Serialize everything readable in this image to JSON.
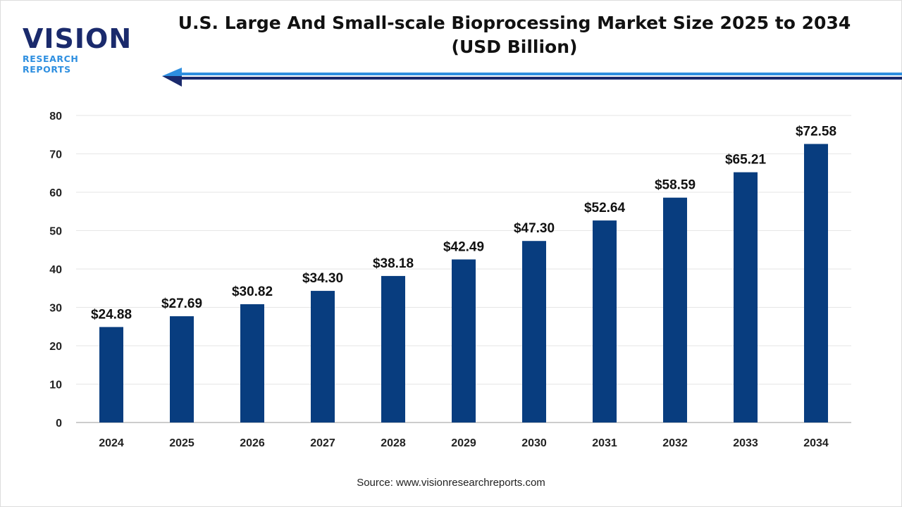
{
  "logo": {
    "word": "VISION",
    "sub": "RESEARCH REPORTS"
  },
  "colors": {
    "bar": "#083d7f",
    "arrow_light": "#2e8fe0",
    "arrow_dark": "#1a2a6c"
  },
  "source": "Source: www.visionresearchreports.com",
  "chart_data": {
    "type": "bar",
    "title": "U.S. Large And Small-scale Bioprocessing Market Size 2025 to 2034 (USD Billion)",
    "title_lines": [
      "U.S. Large And Small-scale Bioprocessing Market Size 2025 to 2034",
      "(USD Billion)"
    ],
    "categories": [
      "2024",
      "2025",
      "2026",
      "2027",
      "2028",
      "2029",
      "2030",
      "2031",
      "2032",
      "2033",
      "2034"
    ],
    "values": [
      24.88,
      27.69,
      30.82,
      34.3,
      38.18,
      42.49,
      47.3,
      52.64,
      58.59,
      65.21,
      72.58
    ],
    "data_labels": [
      "$24.88",
      "$27.69",
      "$30.82",
      "$34.30",
      "$38.18",
      "$42.49",
      "$47.30",
      "$52.64",
      "$58.59",
      "$65.21",
      "$72.58"
    ],
    "yticks": [
      "0",
      "10",
      "20",
      "30",
      "40",
      "50",
      "60",
      "70",
      "80"
    ],
    "ylim": [
      0,
      80
    ],
    "xlabel": "",
    "ylabel": "",
    "grid": true,
    "legend": "none"
  }
}
